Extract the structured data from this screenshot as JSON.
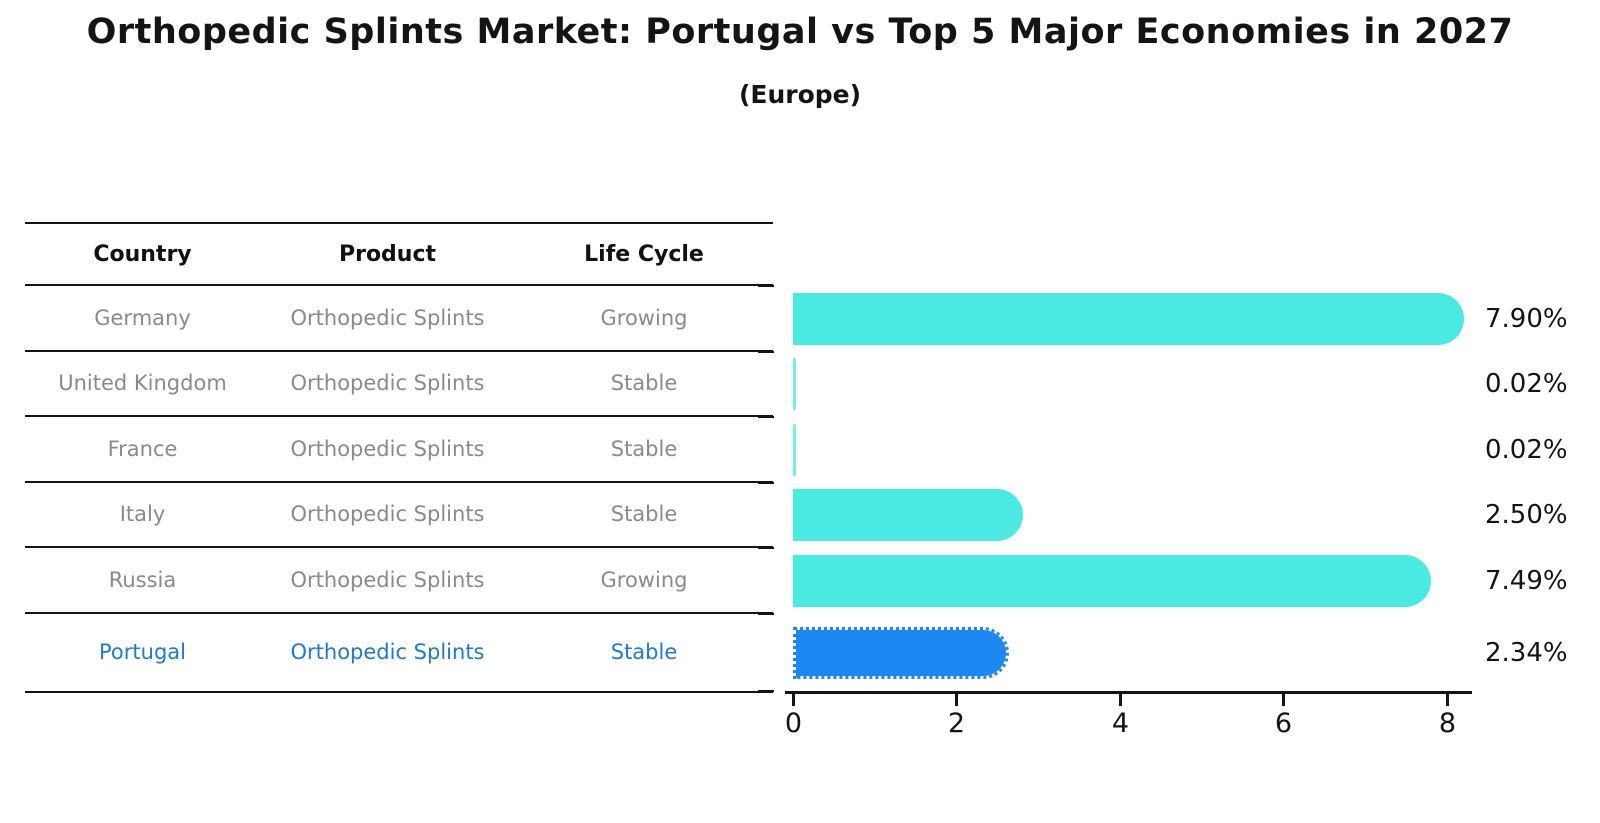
{
  "title": "Orthopedic Splints Market: Portugal vs Top 5 Major Economies in 2027",
  "subtitle": "(Europe)",
  "table": {
    "columns": [
      "Country",
      "Product",
      "Life Cycle"
    ]
  },
  "chart_data": {
    "type": "bar",
    "orientation": "horizontal",
    "title": "Orthopedic Splints Market: Portugal vs Top 5 Major Economies in 2027",
    "subtitle": "(Europe)",
    "categories": [
      "Germany",
      "United Kingdom",
      "France",
      "Italy",
      "Russia",
      "Portugal"
    ],
    "values": [
      7.9,
      0.02,
      0.02,
      2.5,
      7.49,
      2.34
    ],
    "value_labels": [
      "7.90%",
      "0.02%",
      "0.02%",
      "2.50%",
      "7.49%",
      "2.34%"
    ],
    "x_ticks": [
      0,
      2,
      4,
      6,
      8
    ],
    "xlim": [
      0,
      8.4
    ],
    "grid": false,
    "legend": false,
    "rows": [
      {
        "country": "Germany",
        "product": "Orthopedic Splints",
        "life_cycle": "Growing",
        "value": 7.9,
        "label": "7.90%",
        "highlight": false
      },
      {
        "country": "United Kingdom",
        "product": "Orthopedic Splints",
        "life_cycle": "Stable",
        "value": 0.02,
        "label": "0.02%",
        "highlight": false
      },
      {
        "country": "France",
        "product": "Orthopedic Splints",
        "life_cycle": "Stable",
        "value": 0.02,
        "label": "0.02%",
        "highlight": false
      },
      {
        "country": "Italy",
        "product": "Orthopedic Splints",
        "life_cycle": "Stable",
        "value": 2.5,
        "label": "2.50%",
        "highlight": false
      },
      {
        "country": "Russia",
        "product": "Orthopedic Splints",
        "life_cycle": "Growing",
        "value": 7.49,
        "label": "7.49%",
        "highlight": false
      },
      {
        "country": "Portugal",
        "product": "Orthopedic Splints",
        "life_cycle": "Stable",
        "value": 2.34,
        "label": "2.34%",
        "highlight": true
      }
    ],
    "colors": {
      "bar": "#4AE9E2",
      "highlight_bar": "#1E88F2",
      "highlight_text": "#1F7AD0",
      "axis": "#141414"
    }
  }
}
